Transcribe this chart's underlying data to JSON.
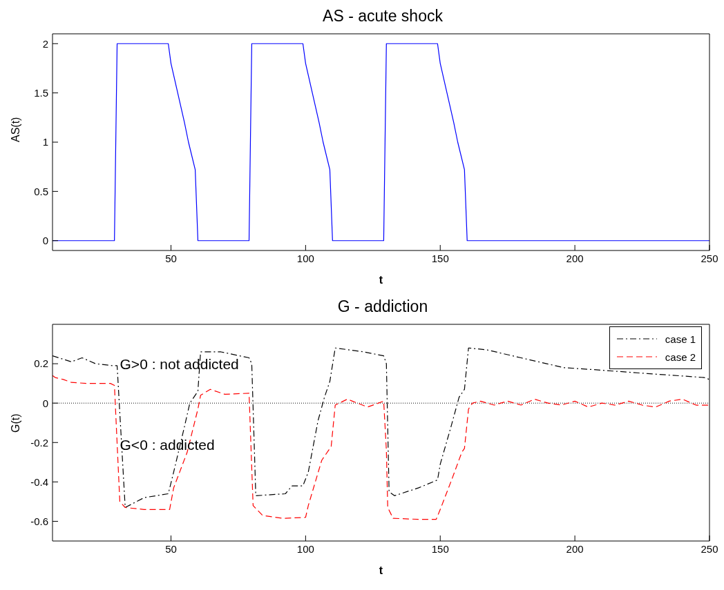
{
  "chart_data": [
    {
      "type": "line",
      "title": "AS - acute shock",
      "xlabel": "t",
      "ylabel": "AS(t)",
      "xlim": [
        6,
        250
      ],
      "xticks": [
        50,
        100,
        150,
        200,
        250
      ],
      "ylim": [
        -0.1,
        2.1
      ],
      "yticks": [
        0,
        0.5,
        1,
        1.5,
        2
      ],
      "line_style": "solid",
      "marker": "none",
      "series": [
        {
          "color": "#0000ff",
          "x": [
            6,
            29,
            30,
            49,
            50,
            52.5,
            55,
            56.5,
            59,
            60,
            79,
            80,
            99,
            100,
            102.5,
            105,
            106.5,
            109,
            110,
            129,
            130,
            149,
            150,
            152.5,
            155,
            156.5,
            159,
            160,
            250
          ],
          "values": [
            0,
            0,
            2,
            2,
            1.8,
            1.5,
            1.2,
            1,
            0.72,
            0,
            0,
            2,
            2,
            1.8,
            1.5,
            1.2,
            1,
            0.72,
            0,
            0,
            2,
            2,
            1.8,
            1.5,
            1.2,
            1,
            0.72,
            0,
            0
          ]
        }
      ]
    },
    {
      "type": "line",
      "title": "G - addiction",
      "xlabel": "t",
      "ylabel": "G(t)",
      "xlim": [
        6,
        250
      ],
      "xticks": [
        50,
        100,
        150,
        200,
        250
      ],
      "ylim": [
        -0.7,
        0.4
      ],
      "yticks": [
        -0.6,
        -0.4,
        -0.2,
        0,
        0.2
      ],
      "legend": "top right",
      "marker": "none",
      "ref_lines": [
        {
          "axis": "y",
          "value": 0,
          "color": "#000000",
          "line_style": "dotted"
        }
      ],
      "annotations": [
        {
          "text": "G>0 : not addicted",
          "x": 30,
          "y": 0.2
        },
        {
          "text": "G<0 : addicted",
          "x": 30,
          "y": -0.21
        }
      ],
      "series": [
        {
          "name": "case 1",
          "color": "#000000",
          "line_style": "dashdot",
          "x": [
            6,
            13,
            17,
            22,
            28.5,
            30,
            33,
            40,
            49,
            51,
            55,
            57,
            60,
            61,
            68.6,
            79,
            80,
            81.5,
            92.5,
            95,
            99,
            101,
            104.6,
            107,
            109,
            111,
            121.7,
            129,
            130,
            131,
            133,
            142,
            149,
            150,
            154,
            157,
            159,
            160.5,
            167.5,
            180,
            196,
            207,
            227,
            248,
            250
          ],
          "values": [
            0.24,
            0.21,
            0.23,
            0.2,
            0.19,
            0.19,
            -0.53,
            -0.48,
            -0.46,
            -0.35,
            -0.12,
            0,
            0.06,
            0.26,
            0.26,
            0.23,
            0.2,
            -0.47,
            -0.46,
            -0.42,
            -0.42,
            -0.35,
            -0.09,
            0.03,
            0.11,
            0.28,
            0.26,
            0.24,
            0.2,
            -0.45,
            -0.47,
            -0.43,
            -0.39,
            -0.31,
            -0.12,
            0.03,
            0.07,
            0.28,
            0.27,
            0.23,
            0.18,
            0.17,
            0.15,
            0.13,
            0.12
          ]
        },
        {
          "name": "case 2",
          "color": "#ff0000",
          "line_style": "dashed",
          "x": [
            6,
            7,
            10,
            13,
            19,
            27.5,
            29,
            31,
            33,
            40,
            49.5,
            51,
            56,
            60,
            61,
            64.6,
            70,
            79,
            80.5,
            84,
            91.5,
            100,
            101,
            106,
            109.5,
            111,
            115.5,
            123,
            129,
            130,
            130.5,
            132.5,
            142,
            148.5,
            150,
            154.5,
            158,
            159,
            160.5,
            162,
            165,
            170,
            175,
            180,
            185,
            190,
            195,
            200,
            205,
            210,
            215,
            220,
            225,
            230,
            235,
            240,
            245,
            250
          ],
          "values": [
            0.14,
            0.13,
            0.12,
            0.105,
            0.1,
            0.1,
            0.09,
            -0.5,
            -0.53,
            -0.54,
            -0.54,
            -0.43,
            -0.25,
            -0.03,
            0.04,
            0.07,
            0.045,
            0.05,
            -0.52,
            -0.57,
            -0.585,
            -0.58,
            -0.52,
            -0.29,
            -0.22,
            -0.01,
            0.02,
            -0.02,
            0.01,
            -0.24,
            -0.53,
            -0.585,
            -0.59,
            -0.59,
            -0.54,
            -0.38,
            -0.25,
            -0.23,
            -0.03,
            0,
            0.01,
            -0.01,
            0.01,
            -0.01,
            0.02,
            0,
            -0.01,
            0.01,
            -0.02,
            0,
            -0.01,
            0.01,
            -0.01,
            -0.02,
            0.01,
            0.02,
            -0.01,
            -0.01
          ]
        }
      ]
    }
  ]
}
